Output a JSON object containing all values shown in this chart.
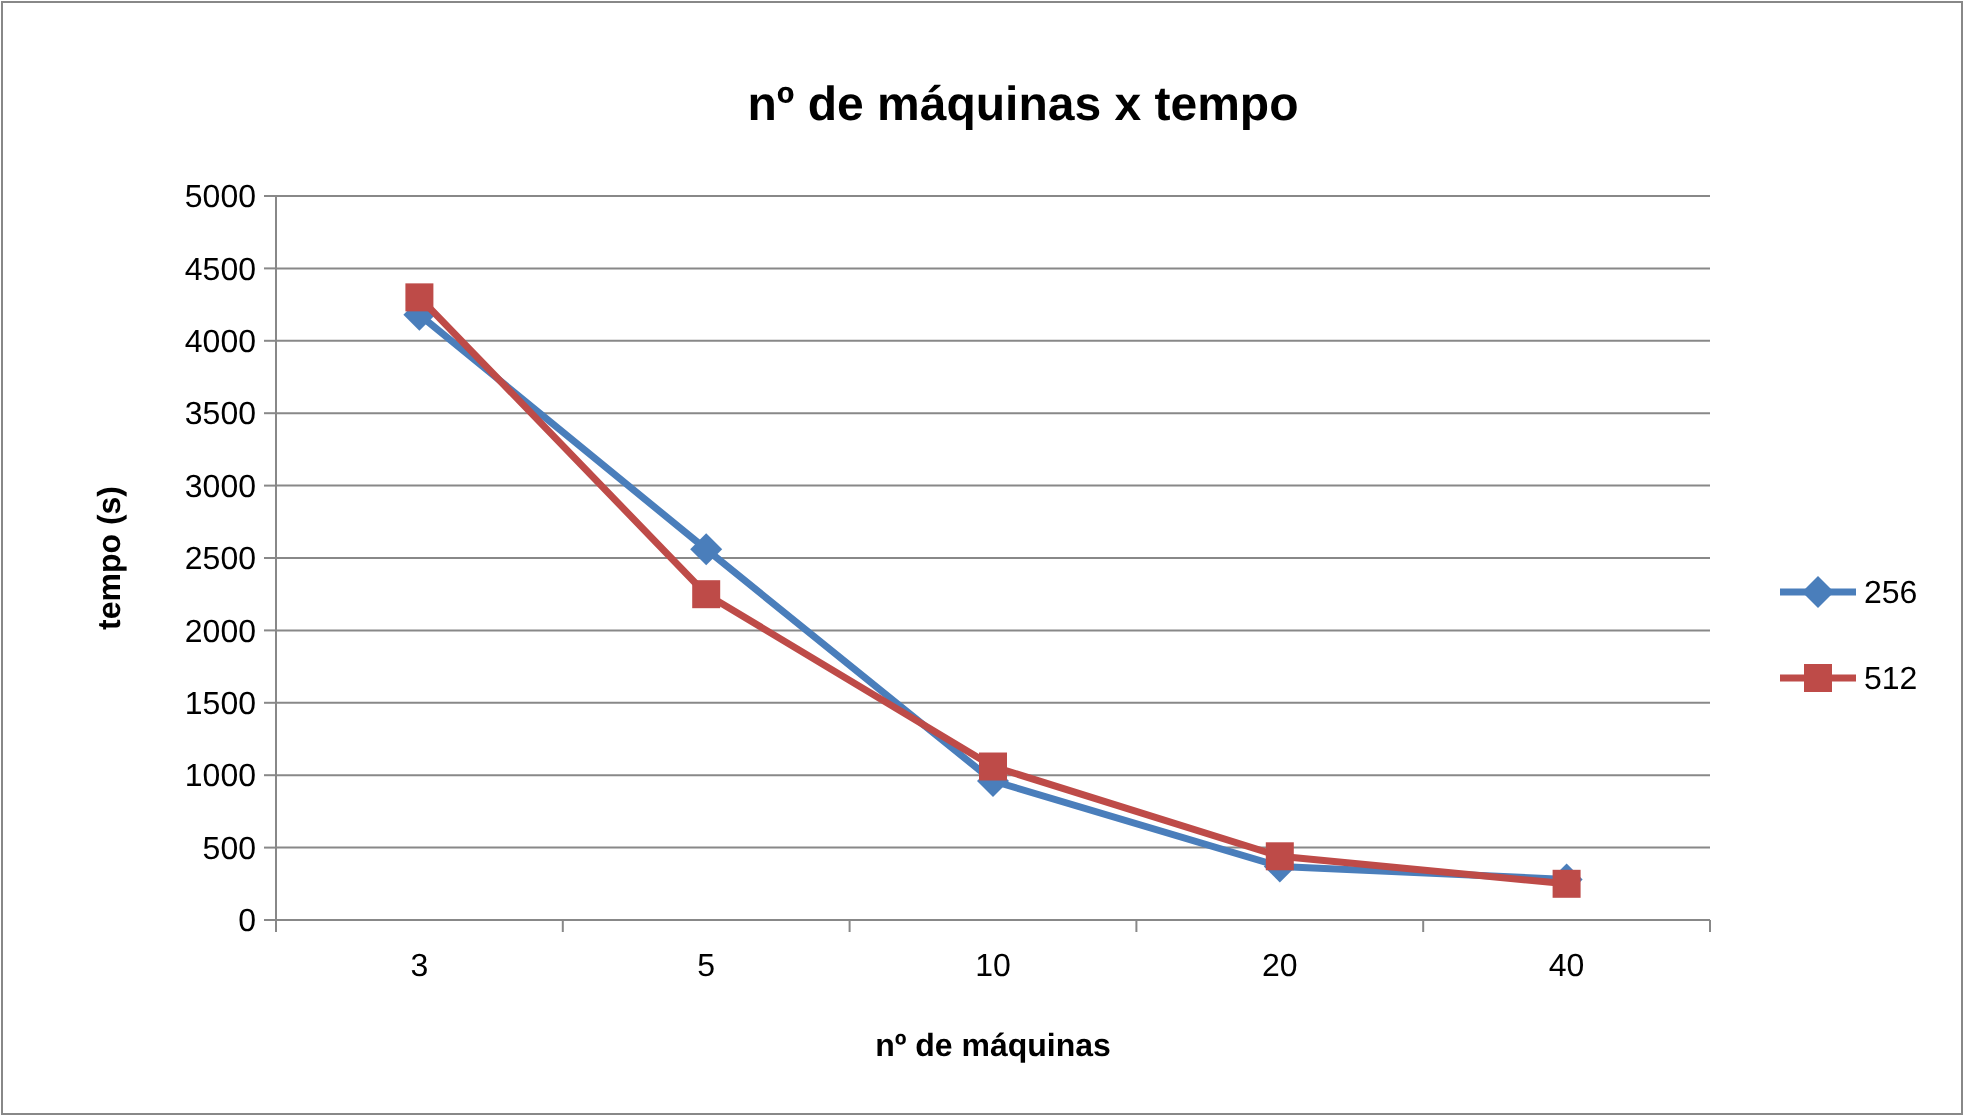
{
  "chart_data": {
    "type": "line",
    "title": "nº de máquinas x tempo",
    "xlabel": "nº de máquinas",
    "ylabel": "tempo (s)",
    "categories": [
      "3",
      "5",
      "10",
      "20",
      "40"
    ],
    "series": [
      {
        "name": "256",
        "color": "#4a7ebb",
        "marker": "diamond",
        "values": [
          4180,
          2560,
          960,
          370,
          280
        ]
      },
      {
        "name": "512",
        "color": "#be4b48",
        "marker": "square",
        "values": [
          4300,
          2250,
          1060,
          440,
          250
        ]
      }
    ],
    "ylim": [
      0,
      5000
    ],
    "yticks": [
      0,
      500,
      1000,
      1500,
      2000,
      2500,
      3000,
      3500,
      4000,
      4500,
      5000
    ],
    "grid": "y",
    "legend": "right"
  }
}
